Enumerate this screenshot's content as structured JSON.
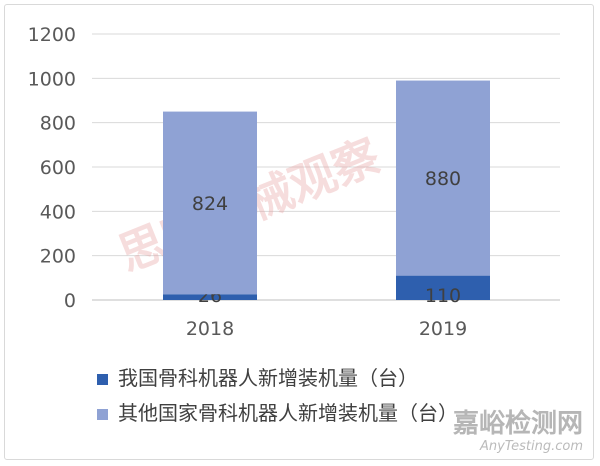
{
  "chart_data": {
    "type": "bar",
    "stacked": true,
    "categories": [
      "2018",
      "2019"
    ],
    "series": [
      {
        "name": "我国骨科机器人新增装机量（台）",
        "values": [
          26,
          110
        ],
        "color": "#2e5fae"
      },
      {
        "name": "其他国家骨科机器人新增装机量（台）",
        "values": [
          824,
          880
        ],
        "color": "#8fa2d4"
      }
    ],
    "ylim": [
      0,
      1200
    ],
    "yticks": [
      "0",
      "200",
      "400",
      "600",
      "800",
      "1000",
      "1200"
    ],
    "grid": true,
    "legend_position": "bottom"
  },
  "watermark": {
    "text": "思宇医械观察",
    "site_name": "嘉峪检测网",
    "site_url": "AnyTesting.com"
  }
}
